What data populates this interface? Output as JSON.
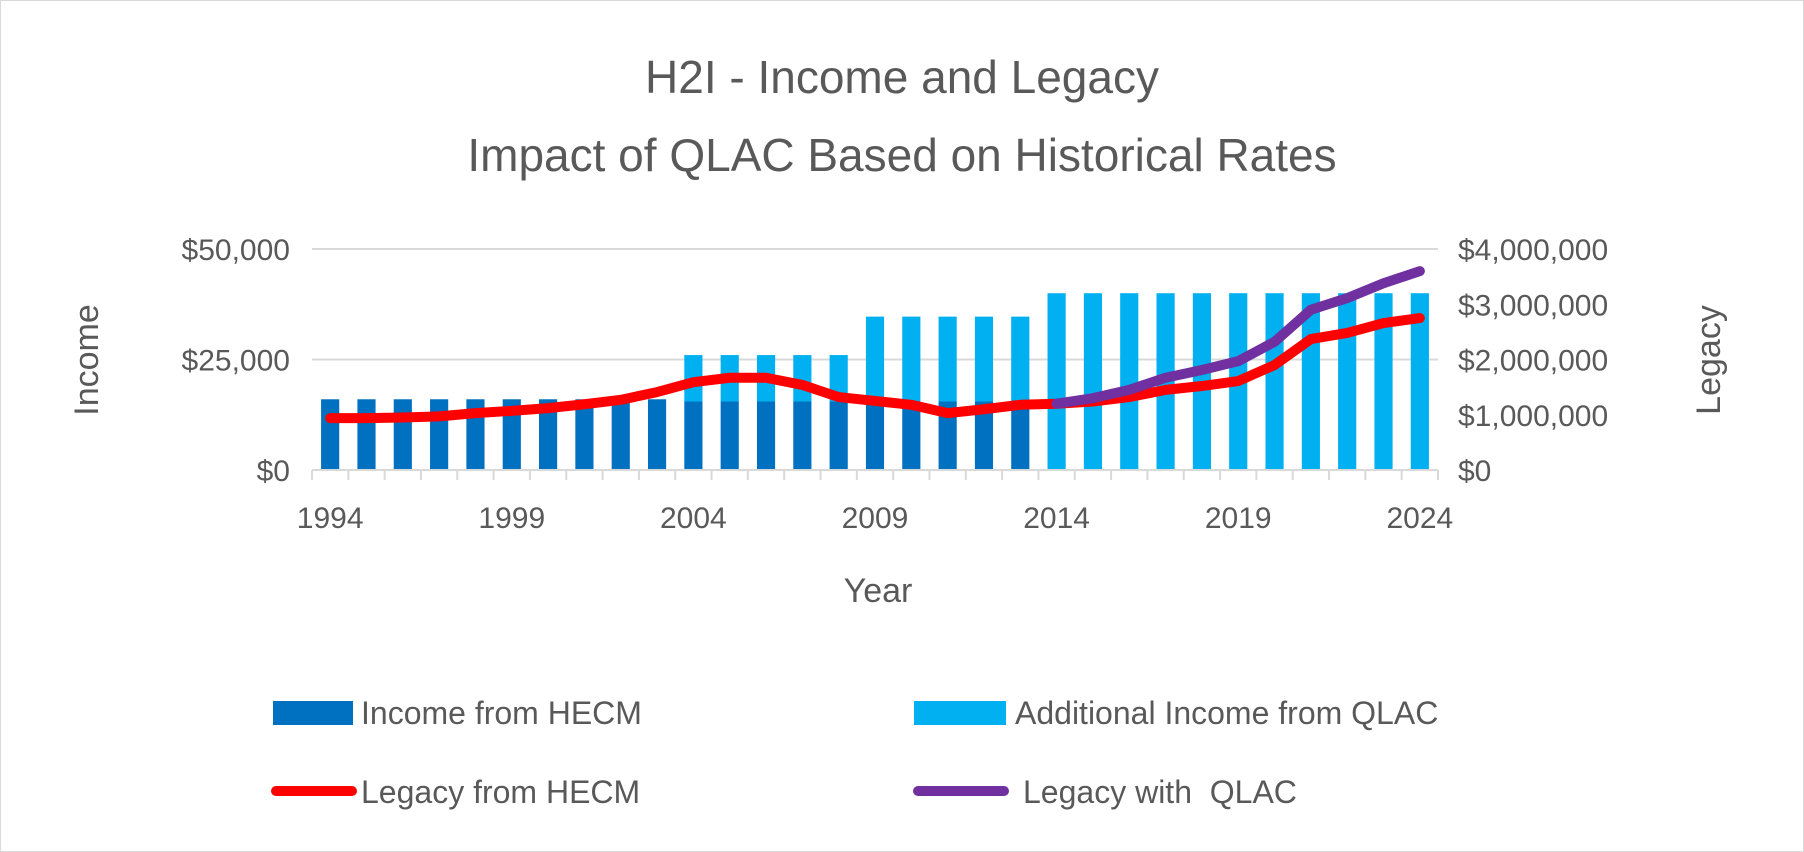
{
  "chart_data": {
    "type": "bar+line",
    "title": [
      "H2I - Income and Legacy",
      "Impact of QLAC Based on Historical Rates"
    ],
    "xlabel": "Year",
    "ylabel": "Income",
    "y2label": "Legacy",
    "x": [
      1994,
      1995,
      1996,
      1997,
      1998,
      1999,
      2000,
      2001,
      2002,
      2003,
      2004,
      2005,
      2006,
      2007,
      2008,
      2009,
      2010,
      2011,
      2012,
      2013,
      2014,
      2015,
      2016,
      2017,
      2018,
      2019,
      2020,
      2021,
      2022,
      2023,
      2024
    ],
    "x_tick_labels": [
      "1994",
      "1999",
      "2004",
      "2009",
      "2014",
      "2019",
      "2024"
    ],
    "ylim": [
      0,
      50000
    ],
    "y_tick_labels": [
      "$0",
      "$25,000",
      "$50,000"
    ],
    "y2lim": [
      0,
      4000000
    ],
    "y2_tick_labels": [
      "$0",
      "$1,000,000",
      "$2,000,000",
      "$3,000,000",
      "$4,000,000"
    ],
    "grid": true,
    "legend_position": "bottom",
    "series": [
      {
        "name": "Income from HECM",
        "type": "stacked-bar",
        "axis": "left",
        "color": "#0070c0",
        "values": [
          16000,
          16000,
          16000,
          16000,
          16000,
          16000,
          16000,
          16000,
          16000,
          16000,
          15500,
          15500,
          15500,
          15500,
          15500,
          15500,
          15500,
          15500,
          15500,
          15500,
          0,
          0,
          0,
          0,
          0,
          0,
          0,
          0,
          0,
          0,
          0
        ]
      },
      {
        "name": "Additional Income from QLAC",
        "type": "stacked-bar",
        "axis": "left",
        "color": "#00b0f0",
        "values": [
          0,
          0,
          0,
          0,
          0,
          0,
          0,
          0,
          0,
          0,
          10500,
          10500,
          10500,
          10500,
          10500,
          19200,
          19200,
          19200,
          19200,
          19200,
          40000,
          40000,
          40000,
          40000,
          40000,
          40000,
          40000,
          40000,
          40000,
          40000,
          40000
        ]
      },
      {
        "name": "Legacy from HECM",
        "type": "line",
        "axis": "right",
        "color": "#ff0000",
        "values": [
          940000,
          940000,
          950000,
          970000,
          1030000,
          1070000,
          1120000,
          1190000,
          1270000,
          1410000,
          1590000,
          1670000,
          1670000,
          1540000,
          1320000,
          1250000,
          1180000,
          1030000,
          1100000,
          1180000,
          1200000,
          1240000,
          1320000,
          1450000,
          1520000,
          1610000,
          1900000,
          2370000,
          2480000,
          2660000,
          2750000
        ]
      },
      {
        "name": "Legacy with  QLAC",
        "type": "line",
        "axis": "right",
        "color": "#7030a0",
        "values": [
          null,
          null,
          null,
          null,
          null,
          null,
          null,
          null,
          null,
          null,
          null,
          null,
          null,
          null,
          null,
          null,
          null,
          null,
          null,
          null,
          1200000,
          1300000,
          1450000,
          1670000,
          1810000,
          1970000,
          2320000,
          2900000,
          3110000,
          3380000,
          3600000
        ]
      }
    ]
  }
}
